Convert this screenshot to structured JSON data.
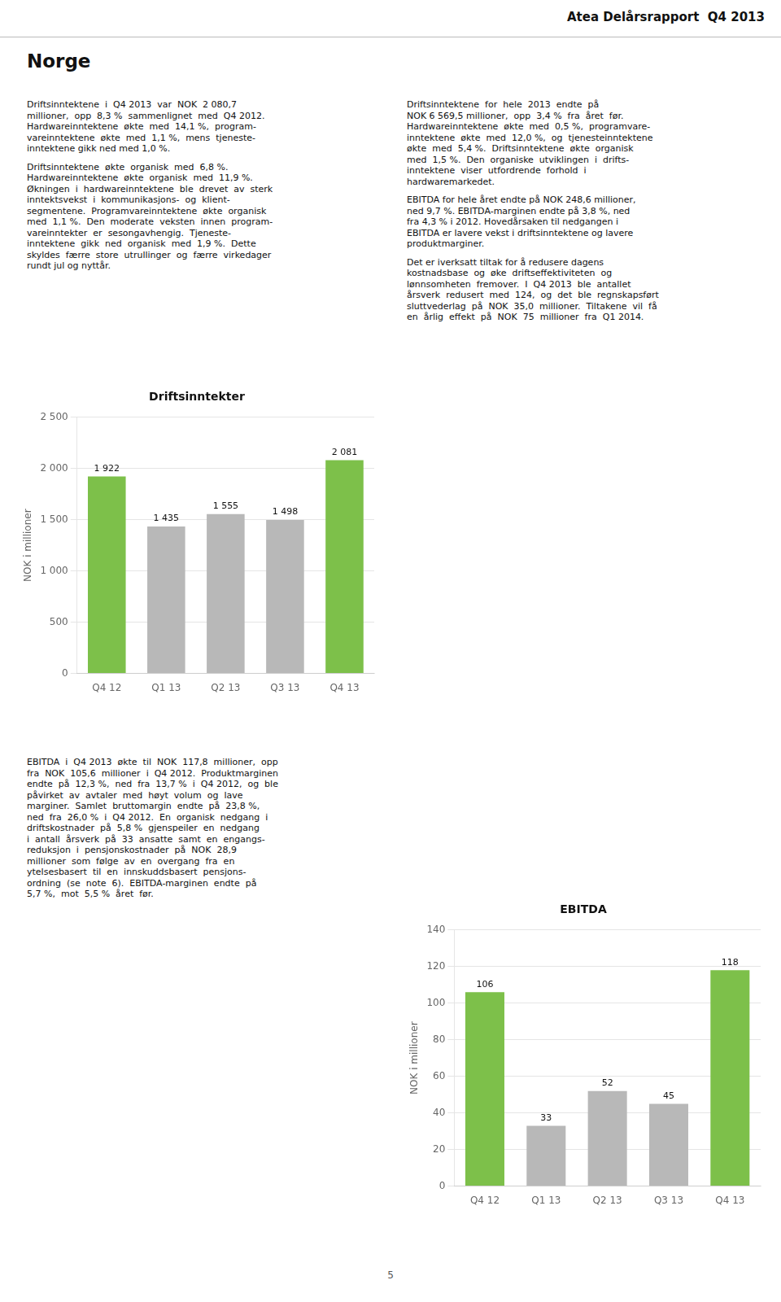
{
  "subtitle": "Atea Delårsrapport  Q4 2013",
  "title": "Norge",
  "annotations": [
    "Driftsinntektene  i  Q4 2013  var  NOK  2 080,7\nmillioner,  opp  8,3 %  sammenlignet  med  Q4 2012.\nHardwareinntektene  økte  med  14,1 %,  program-\nvareinntektene  økte  med  1,1 %,  mens  tjeneste-\ninntektene gikk ned med 1,0 %.",
    "Driftsinntektene  økte  organisk  med  6,8 %.\nHardwareinntektene  økte  organisk  med  11,9 %.\nØkningen  i  hardwareinntektene  ble  drevet  av  sterk\ninntektsvekst  i  kommunikasjons-  og  klient-\nsegmentene.  Programvareinntektene  økte  organisk\nmed  1,1 %.  Den  moderate  veksten  innen  program-\nvareinntekter  er  sesongavhengig.  Tjeneste-\ninntektene  gikk  ned  organisk  med  1,9 %.  Dette\nskyldes  færre  store  utrullinger  og  færre  virkedager\nrundt jul og nyttår.",
    "Driftsinntektene  for  hele  2013  endte  på\nNOK 6 569,5 millioner,  opp  3,4 %  fra  året  før.\nHardwareinntektene  økte  med  0,5 %,  programvare-\ninntektene  økte  med  12,0 %,  og  tjenesteinntektene\nøkte  med  5,4 %.  Driftsinntektene  økte  organisk\nmed  1,5 %.  Den  organiske  utviklingen  i  drifts-\ninntektene  viser  utfordrende  forhold  i\nhardwaremarkedet.",
    "EBITDA for hele året endte på NOK 248,6 millioner,\nned 9,7 %. EBITDA-marginen endte på 3,8 %, ned\nfra 4,3 % i 2012. Hovedårsaken til nedgangen i\nEBITDA er lavere vekst i driftsinntektene og lavere\nproduktmarginer.",
    "Det er iverksatt tiltak for å redusere dagens\nkostnadsbase  og  øke  driftseffektiviteten  og\nlønnsomheten  fremover.  I  Q4 2013  ble  antallet\nårsverk  redusert  med  124,  og  det  ble  regnskapsført\nsluttvederlag  på  NOK  35,0  millioner.  Tiltakene  vil  få\nen  årlig  effekt  på  NOK  75  millioner  fra  Q1 2014.",
    "EBITDA  i  Q4 2013  økte  til  NOK  117,8  millioner,  opp\nfra  NOK  105,6  millioner  i  Q4 2012.  Produktmarginen\nendte  på  12,3 %,  ned  fra  13,7 %  i  Q4 2012,  og  ble\npåvirket  av  avtaler  med  høyt  volum  og  lave\nmarginer.  Samlet  bruttomargin  endte  på  23,8 %,\nned  fra  26,0 %  i  Q4 2012.  En  organisk  nedgang  i\ndriftskostnader  på  5,8 %  gjenspeiler  en  nedgang\ni  antall  årsverk  på  33  ansatte  samt  en  engangs-\nreduksjon  i  pensjonskostnader  på  NOK  28,9\nmillioner  som  følge  av  en  overgang  fra  en\nytelsesbasert  til  en  innskuddsbasert  pensjons-\nordning  (se  note  6).  EBITDA-marginen  endte  på\n5,7 %,  mot  5,5 %  året  før.",
    "5"
  ],
  "chart_data": [
    {
      "type": "bar",
      "title": "Driftsinntekter",
      "y_label": "NOK i millioner",
      "categories": [
        "Q4 12",
        "Q1 13",
        "Q2 13",
        "Q3 13",
        "Q4 13"
      ],
      "values": [
        1922,
        1435,
        1555,
        1498,
        2081
      ],
      "value_labels": [
        "1 922",
        "1 435",
        "1 555",
        "1 498",
        "2 081"
      ],
      "colors": [
        "#7dc04a",
        "#b8b8b8",
        "#b8b8b8",
        "#b8b8b8",
        "#7dc04a"
      ],
      "ylim": [
        0,
        2500
      ],
      "yticks": [
        0,
        500,
        {
          "value": 1000,
          "label": "1 000"
        },
        {
          "value": 1500,
          "label": "1 500"
        },
        {
          "value": 2000,
          "label": "2 000"
        },
        {
          "value": 2500,
          "label": "2 500"
        }
      ],
      "grid": true,
      "data_labels": true
    },
    {
      "type": "bar",
      "title": "EBITDA",
      "y_label": "NOK i millioner",
      "categories": [
        "Q4 12",
        "Q1 13",
        "Q2 13",
        "Q3 13",
        "Q4 13"
      ],
      "values": [
        106,
        33,
        52,
        45,
        118
      ],
      "colors": [
        "#7dc04a",
        "#b8b8b8",
        "#b8b8b8",
        "#b8b8b8",
        "#7dc04a"
      ],
      "ylim": [
        0,
        140
      ],
      "yticks": [
        0,
        20,
        40,
        60,
        80,
        100,
        120,
        140
      ],
      "grid": true,
      "data_labels": true
    }
  ]
}
